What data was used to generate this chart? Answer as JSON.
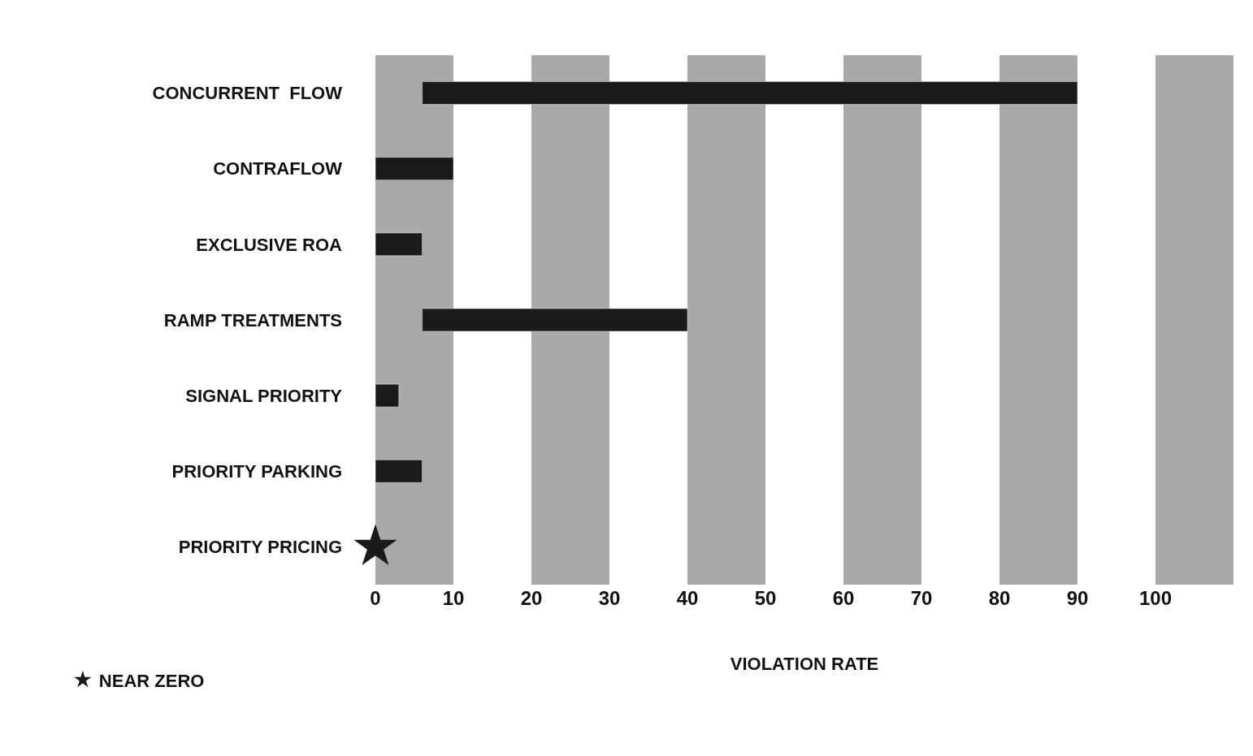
{
  "chart_data": {
    "type": "bar",
    "orientation": "horizontal",
    "xlabel": "VIOLATION RATE",
    "categories": [
      "CONCURRENT  FLOW",
      "CONTRAFLOW",
      "EXCLUSIVE ROA",
      "RAMP TREATMENTS",
      "SIGNAL PRIORITY",
      "PRIORITY PARKING",
      "PRIORITY PRICING"
    ],
    "series": [
      {
        "color": "#1a1a1a",
        "base": [
          6,
          0,
          0,
          6,
          0,
          0,
          null
        ],
        "values": [
          84,
          10,
          6,
          34,
          3,
          6,
          null
        ]
      },
      {
        "type": "scatter",
        "name": "NEAR ZERO",
        "color": "#1a1a1a",
        "marker": "star",
        "values": [
          null,
          null,
          null,
          null,
          null,
          null,
          0
        ]
      }
    ],
    "xlim": [
      0,
      110
    ],
    "xticks": [
      0,
      10,
      20,
      30,
      40,
      50,
      60,
      70,
      80,
      90,
      100
    ],
    "bands": [
      {
        "axis": "x",
        "from": 0,
        "to": 10,
        "color": "#a9a9a9"
      },
      {
        "axis": "x",
        "from": 20,
        "to": 30,
        "color": "#a9a9a9"
      },
      {
        "axis": "x",
        "from": 40,
        "to": 50,
        "color": "#a9a9a9"
      },
      {
        "axis": "x",
        "from": 60,
        "to": 70,
        "color": "#a9a9a9"
      },
      {
        "axis": "x",
        "from": 80,
        "to": 90,
        "color": "#a9a9a9"
      },
      {
        "axis": "x",
        "from": 100,
        "to": 110,
        "color": "#a9a9a9"
      }
    ],
    "grid": false,
    "legend": "bottom left"
  }
}
